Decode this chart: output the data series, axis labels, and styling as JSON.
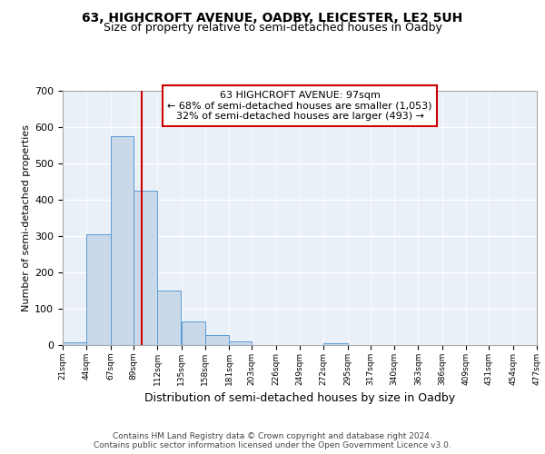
{
  "title1": "63, HIGHCROFT AVENUE, OADBY, LEICESTER, LE2 5UH",
  "title2": "Size of property relative to semi-detached houses in Oadby",
  "xlabel": "Distribution of semi-detached houses by size in Oadby",
  "ylabel": "Number of semi-detached properties",
  "bin_edges": [
    21,
    44,
    67,
    89,
    112,
    135,
    158,
    181,
    203,
    226,
    249,
    272,
    295,
    317,
    340,
    363,
    386,
    409,
    431,
    454,
    477
  ],
  "bar_heights": [
    7,
    305,
    575,
    425,
    150,
    65,
    27,
    10,
    0,
    0,
    0,
    4,
    0,
    0,
    0,
    0,
    0,
    0,
    0,
    0
  ],
  "bar_facecolor": "#c9d9ea",
  "bar_edgecolor": "#5b9bd5",
  "grid_color": "#ffffff",
  "bg_color": "#eaf0f8",
  "property_size": 97,
  "vline_color": "#cc0000",
  "annotation_line1": "63 HIGHCROFT AVENUE: 97sqm",
  "annotation_line2": "← 68% of semi-detached houses are smaller (1,053)",
  "annotation_line3": "32% of semi-detached houses are larger (493) →",
  "annotation_box_color": "#cc0000",
  "ylim": [
    0,
    700
  ],
  "yticks": [
    0,
    100,
    200,
    300,
    400,
    500,
    600,
    700
  ],
  "footer_text": "Contains HM Land Registry data © Crown copyright and database right 2024.\nContains public sector information licensed under the Open Government Licence v3.0.",
  "title_fontsize": 10,
  "subtitle_fontsize": 9,
  "tick_labels": [
    "21sqm",
    "44sqm",
    "67sqm",
    "89sqm",
    "112sqm",
    "135sqm",
    "158sqm",
    "181sqm",
    "203sqm",
    "226sqm",
    "249sqm",
    "272sqm",
    "295sqm",
    "317sqm",
    "340sqm",
    "363sqm",
    "386sqm",
    "409sqm",
    "431sqm",
    "454sqm",
    "477sqm"
  ]
}
